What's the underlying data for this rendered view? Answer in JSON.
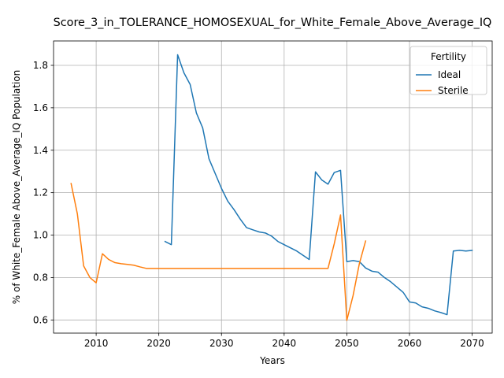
{
  "chart_data": {
    "type": "line",
    "title": "Score_3_in_TOLERANCE_HOMOSEXUAL_for_White_Female_Above_Average_IQ",
    "xlabel": "Years",
    "ylabel": "% of White_Female Above_Average_IQ Population",
    "xlim": [
      2003.2,
      2073.2
    ],
    "ylim": [
      0.538,
      1.915
    ],
    "xticks": [
      2010,
      2020,
      2030,
      2040,
      2050,
      2060,
      2070
    ],
    "yticks": [
      0.6,
      0.8,
      1.0,
      1.2,
      1.4,
      1.6,
      1.8
    ],
    "grid": true,
    "legend": {
      "title": "Fertility",
      "position": "top-right"
    },
    "series": [
      {
        "name": "Ideal",
        "color": "#1f77b4",
        "x": [
          2021,
          2022,
          2023,
          2024,
          2025,
          2026,
          2027,
          2028,
          2029,
          2030,
          2031,
          2032,
          2033,
          2034,
          2035,
          2036,
          2037,
          2038,
          2039,
          2040,
          2041,
          2042,
          2043,
          2044,
          2045,
          2046,
          2047,
          2048,
          2049,
          2050,
          2051,
          2052,
          2053,
          2054,
          2055,
          2056,
          2057,
          2058,
          2059,
          2060,
          2061,
          2062,
          2063,
          2064,
          2065,
          2066,
          2067,
          2068,
          2069,
          2070
        ],
        "values": [
          0.97,
          0.955,
          1.85,
          1.765,
          1.71,
          1.575,
          1.505,
          1.36,
          1.29,
          1.22,
          1.16,
          1.12,
          1.075,
          1.035,
          1.025,
          1.015,
          1.01,
          0.995,
          0.97,
          0.955,
          0.94,
          0.925,
          0.905,
          0.885,
          1.298,
          1.26,
          1.24,
          1.295,
          1.305,
          0.875,
          0.88,
          0.875,
          0.845,
          0.83,
          0.825,
          0.8,
          0.78,
          0.755,
          0.73,
          0.685,
          0.68,
          0.662,
          0.655,
          0.643,
          0.635,
          0.625,
          0.925,
          0.928,
          0.925,
          0.928
        ]
      },
      {
        "name": "Sterile",
        "color": "#ff7f0e",
        "x": [
          2006,
          2007,
          2008,
          2009,
          2010,
          2011,
          2012,
          2013,
          2014,
          2015,
          2016,
          2017,
          2018,
          2019,
          2020,
          2021,
          2022,
          2023,
          2024,
          2025,
          2026,
          2027,
          2028,
          2029,
          2030,
          2031,
          2032,
          2033,
          2034,
          2035,
          2036,
          2037,
          2038,
          2039,
          2040,
          2041,
          2042,
          2043,
          2044,
          2045,
          2046,
          2047,
          2048,
          2049,
          2050,
          2051,
          2052,
          2053
        ],
        "values": [
          1.243,
          1.1,
          0.855,
          0.8,
          0.775,
          0.912,
          0.885,
          0.87,
          0.865,
          0.862,
          0.858,
          0.85,
          0.843,
          0.843,
          0.843,
          0.843,
          0.843,
          0.843,
          0.843,
          0.843,
          0.843,
          0.843,
          0.843,
          0.843,
          0.843,
          0.843,
          0.843,
          0.843,
          0.843,
          0.843,
          0.843,
          0.843,
          0.843,
          0.843,
          0.843,
          0.843,
          0.843,
          0.843,
          0.843,
          0.843,
          0.843,
          0.843,
          0.96,
          1.095,
          0.598,
          0.715,
          0.865,
          0.972
        ]
      }
    ]
  }
}
